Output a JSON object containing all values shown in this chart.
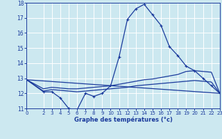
{
  "xlabel": "Graphe des températures (°c)",
  "bg_color": "#cce8f0",
  "grid_color": "#b0d8e8",
  "line_color": "#1a3a9c",
  "xlim": [
    0,
    23
  ],
  "ylim": [
    11,
    18
  ],
  "yticks": [
    11,
    12,
    13,
    14,
    15,
    16,
    17,
    18
  ],
  "xticks": [
    0,
    2,
    3,
    4,
    5,
    6,
    7,
    8,
    9,
    10,
    11,
    12,
    13,
    14,
    15,
    16,
    17,
    18,
    19,
    20,
    21,
    22,
    23
  ],
  "series": [
    {
      "x": [
        0,
        2,
        3,
        4,
        5,
        6,
        7,
        8,
        9,
        10,
        11,
        12,
        13,
        14,
        15,
        16,
        17,
        18,
        19,
        20,
        21,
        22,
        23
      ],
      "y": [
        12.9,
        12.1,
        12.1,
        11.7,
        11.0,
        10.9,
        12.0,
        11.8,
        12.0,
        12.5,
        14.4,
        16.9,
        17.6,
        17.9,
        17.2,
        16.5,
        15.1,
        14.5,
        13.8,
        13.5,
        13.0,
        12.5,
        12.0
      ],
      "marker": "+"
    },
    {
      "x": [
        0,
        23
      ],
      "y": [
        12.9,
        12.0
      ],
      "marker": null
    },
    {
      "x": [
        0,
        2,
        3,
        4,
        5,
        6,
        7,
        8,
        9,
        10,
        11,
        12,
        13,
        14,
        15,
        16,
        17,
        18,
        19,
        20,
        21,
        22,
        23
      ],
      "y": [
        12.9,
        12.3,
        12.4,
        12.35,
        12.3,
        12.3,
        12.35,
        12.4,
        12.45,
        12.5,
        12.6,
        12.7,
        12.8,
        12.9,
        12.95,
        13.05,
        13.15,
        13.25,
        13.45,
        13.5,
        13.45,
        13.4,
        12.0
      ],
      "marker": null
    },
    {
      "x": [
        0,
        2,
        3,
        4,
        5,
        6,
        7,
        8,
        9,
        10,
        11,
        12,
        13,
        14,
        15,
        16,
        17,
        18,
        19,
        20,
        21,
        22,
        23
      ],
      "y": [
        12.9,
        12.15,
        12.25,
        12.2,
        12.15,
        12.1,
        12.15,
        12.2,
        12.25,
        12.3,
        12.35,
        12.4,
        12.5,
        12.55,
        12.6,
        12.65,
        12.7,
        12.75,
        12.8,
        12.85,
        12.8,
        12.75,
        12.0
      ],
      "marker": null
    }
  ]
}
